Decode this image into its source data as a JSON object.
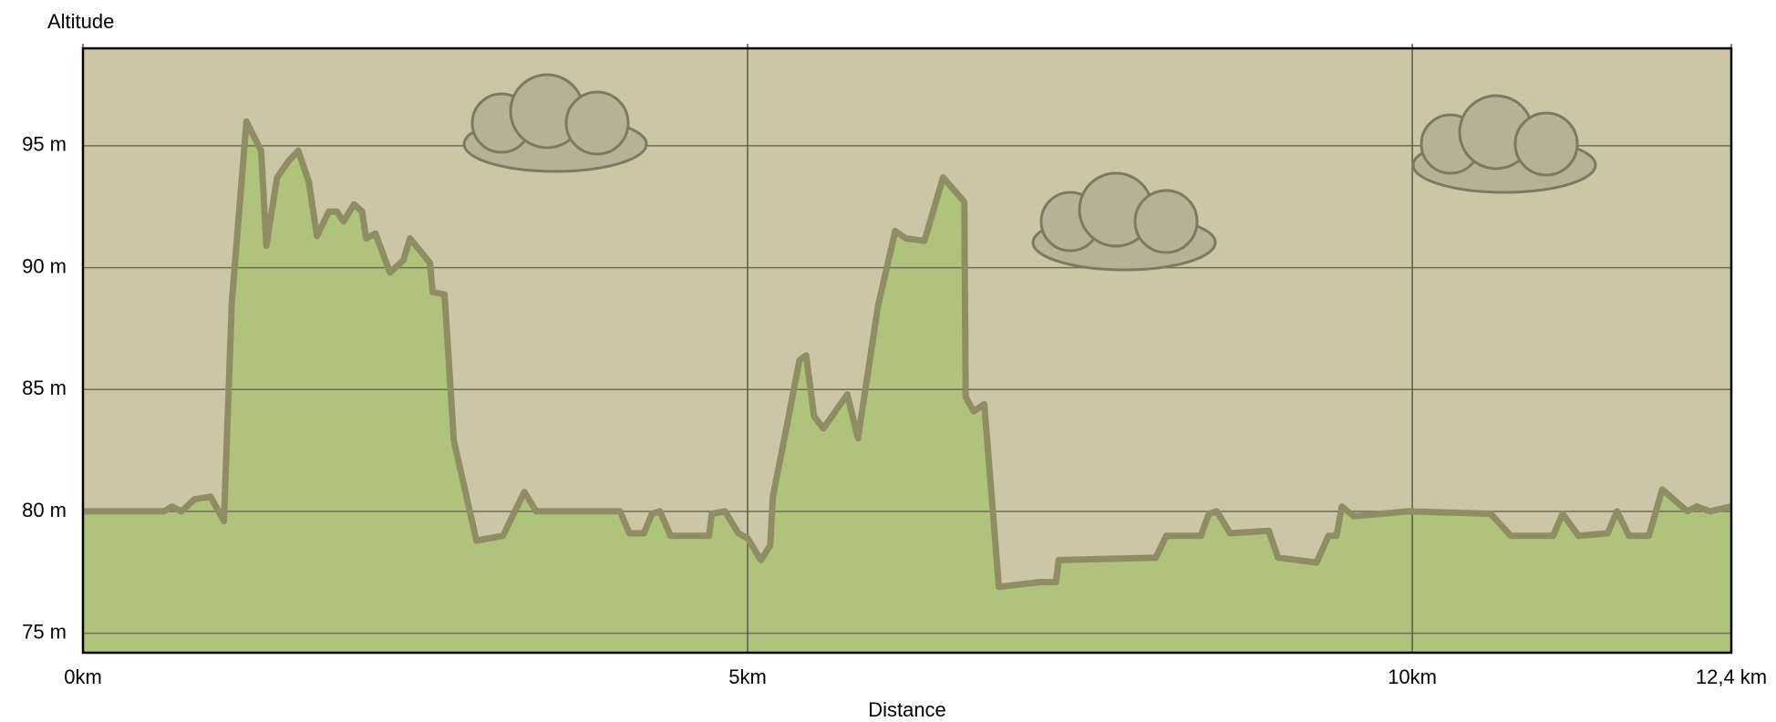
{
  "chart_data": {
    "type": "area",
    "y_label": "Altitude",
    "x_label": "Distance",
    "x": [
      0,
      0.61,
      0.67,
      0.74,
      0.84,
      0.96,
      1.06,
      1.12,
      1.23,
      1.34,
      1.38,
      1.46,
      1.55,
      1.62,
      1.7,
      1.76,
      1.85,
      1.91,
      1.96,
      2.04,
      2.1,
      2.13,
      2.2,
      2.31,
      2.41,
      2.46,
      2.61,
      2.63,
      2.72,
      2.79,
      2.96,
      3.16,
      3.32,
      3.41,
      4.04,
      4.11,
      4.22,
      4.28,
      4.34,
      4.42,
      4.71,
      4.73,
      4.83,
      4.93,
      5.0,
      5.1,
      5.17,
      5.19,
      5.28,
      5.39,
      5.44,
      5.5,
      5.57,
      5.75,
      5.83,
      5.98,
      6.11,
      6.19,
      6.33,
      6.47,
      6.63,
      6.64,
      6.7,
      6.78,
      6.83,
      6.89,
      7.2,
      7.32,
      7.34,
      8.07,
      8.15,
      8.41,
      8.47,
      8.53,
      8.63,
      8.92,
      8.99,
      9.28,
      9.37,
      9.43,
      9.47,
      9.56,
      9.97,
      10.59,
      10.74,
      11.06,
      11.13,
      11.25,
      11.47,
      11.54,
      11.63,
      11.78,
      11.88,
      12.07,
      12.14,
      12.24,
      12.4
    ],
    "values": [
      80,
      80,
      80.2,
      80,
      80.5,
      80.6,
      79.6,
      88.6,
      96.0,
      94.8,
      90.9,
      93.7,
      94.4,
      94.8,
      93.5,
      91.3,
      92.3,
      92.3,
      91.9,
      92.6,
      92.3,
      91.2,
      91.4,
      89.8,
      90.3,
      91.2,
      90.2,
      89.0,
      88.9,
      82.9,
      78.8,
      79.0,
      80.8,
      80,
      80.0,
      79.1,
      79.1,
      79.9,
      80,
      79.0,
      79.0,
      79.9,
      80,
      79.1,
      78.9,
      78.0,
      78.6,
      80.6,
      83.1,
      86.2,
      86.4,
      83.9,
      83.4,
      84.8,
      83.0,
      88.4,
      91.5,
      91.2,
      91.1,
      93.7,
      92.7,
      84.7,
      84.1,
      84.4,
      81.0,
      76.9,
      77.1,
      77.1,
      78.0,
      78.1,
      79.0,
      79.0,
      79.9,
      80,
      79.1,
      79.2,
      78.1,
      77.9,
      79.0,
      79.0,
      80.2,
      79.8,
      80.0,
      79.9,
      79.0,
      79.0,
      79.9,
      79.0,
      79.1,
      80,
      79.0,
      79.0,
      80.9,
      80,
      80.2,
      80,
      80.2
    ],
    "color": "#afc47a",
    "line_color": "#8f8e63",
    "background": "#cdc6a6",
    "xlim": [
      0,
      12.4
    ],
    "ylim": [
      74.2,
      99
    ],
    "xticks": [
      {
        "value": 0,
        "label": "0km"
      },
      {
        "value": 5,
        "label": "5km"
      },
      {
        "value": 10,
        "label": "10km"
      },
      {
        "value": 12.4,
        "label": "12,4 km"
      }
    ],
    "yticks": [
      {
        "value": 75,
        "label": "75 m"
      },
      {
        "value": 80,
        "label": "80 m"
      },
      {
        "value": 85,
        "label": "85 m"
      },
      {
        "value": 90,
        "label": "90 m"
      },
      {
        "value": 95,
        "label": "95 m"
      }
    ],
    "grid": true
  }
}
